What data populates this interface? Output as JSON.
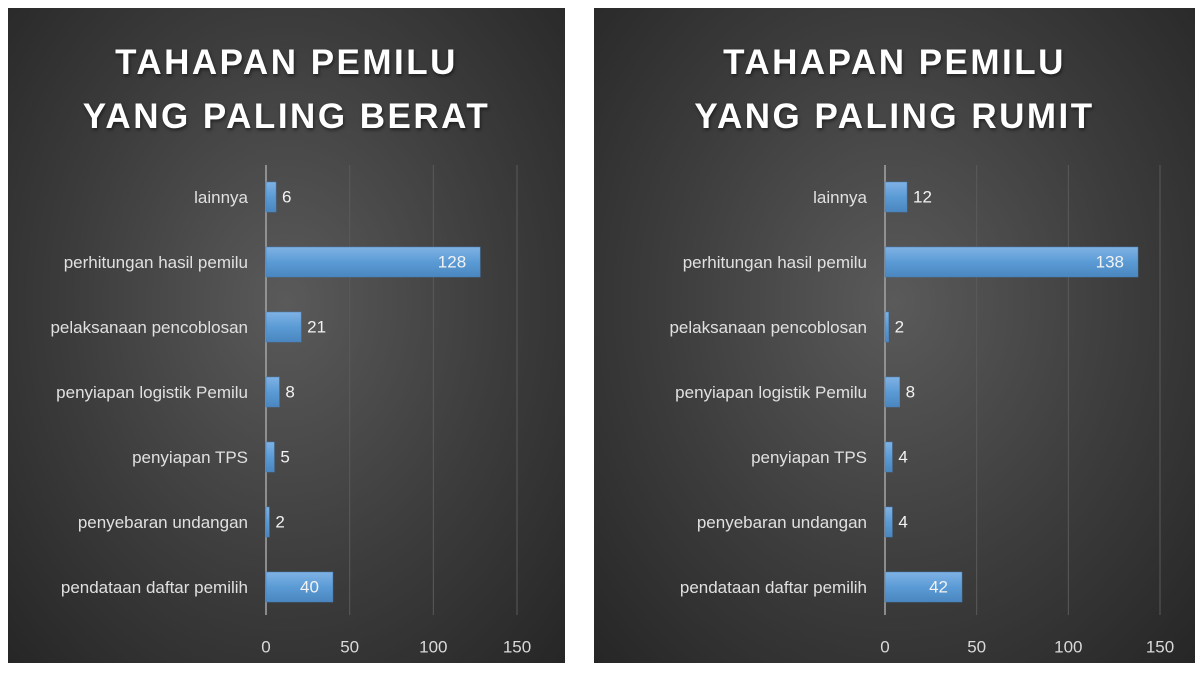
{
  "chart_data": [
    {
      "type": "bar",
      "orientation": "horizontal",
      "title": "TAHAPAN PEMILU YANG PALING BERAT",
      "categories": [
        "lainnya",
        "perhitungan hasil pemilu",
        "pelaksanaan pencoblosan",
        "penyiapan logistik Pemilu",
        "penyiapan TPS",
        "penyebaran undangan",
        "pendataan daftar pemilih"
      ],
      "values": [
        6,
        128,
        21,
        8,
        5,
        2,
        40
      ],
      "color": "#5b9bd5",
      "xlim": [
        0,
        150
      ],
      "xticks": [
        0,
        50,
        100,
        150
      ],
      "grid": true,
      "wrap_labels": true
    },
    {
      "type": "bar",
      "orientation": "horizontal",
      "title": "TAHAPAN PEMILU YANG PALING RUMIT",
      "categories": [
        "lainnya",
        "perhitungan hasil pemilu",
        "pelaksanaan pencoblosan",
        "penyiapan logistik Pemilu",
        "penyiapan TPS",
        "penyebaran undangan",
        "pendataan daftar pemilih"
      ],
      "values": [
        12,
        138,
        2,
        8,
        4,
        4,
        42
      ],
      "color": "#5b9bd5",
      "xlim": [
        0,
        150
      ],
      "xticks": [
        0,
        50,
        100,
        150
      ],
      "grid": true,
      "wrap_labels": false
    }
  ]
}
